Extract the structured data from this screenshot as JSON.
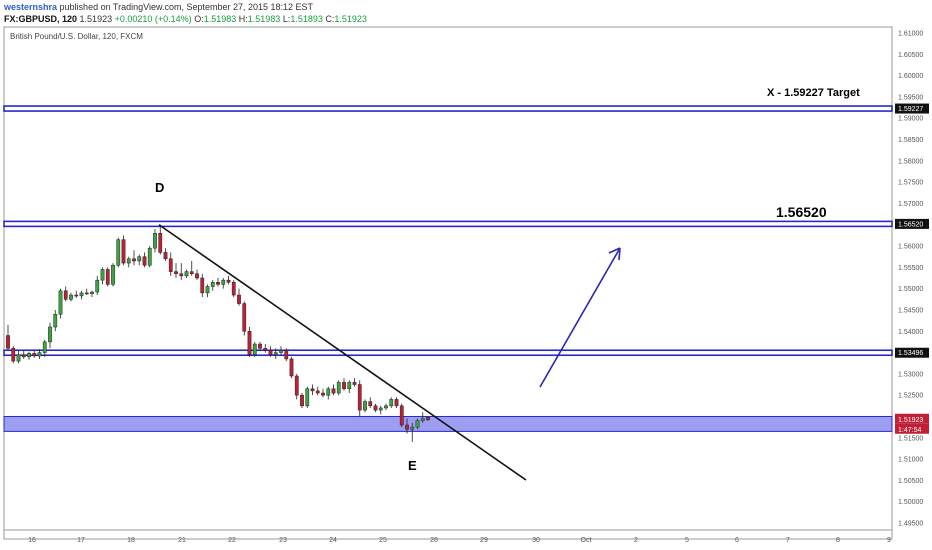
{
  "header": {
    "user": "westernshra",
    "published": "published on TradingView.com, September 27, 2015 18:12 EST",
    "symbol": "FX:GBPUSD, 120",
    "last": "1.51923",
    "change": "+0.00210 (+0.14%)",
    "o_label": "O:",
    "o_value": "1.51983",
    "h_label": "H:",
    "h_value": "1.51983",
    "l_label": "L:",
    "l_value": "1.51893",
    "c_label": "C:",
    "c_value": "1.51923"
  },
  "chart_data": {
    "type": "candlestick",
    "title": "British Pound/U.S. Dollar, 120, FXCM",
    "ylim": [
      1.49,
      1.611
    ],
    "y_ticks": [
      "1.61000",
      "1.60500",
      "1.60000",
      "1.59500",
      "1.59000",
      "1.58500",
      "1.58000",
      "1.57500",
      "1.57000",
      "1.56500",
      "1.56000",
      "1.55500",
      "1.55000",
      "1.54500",
      "1.54000",
      "1.53500",
      "1.53000",
      "1.52500",
      "1.52000",
      "1.51500",
      "1.51000",
      "1.50500",
      "1.50000",
      "1.49500"
    ],
    "x_ticks": [
      "16",
      "17",
      "18",
      "21",
      "22",
      "23",
      "24",
      "25",
      "28",
      "29",
      "30",
      "Oct",
      "2",
      "5",
      "6",
      "7",
      "8",
      "9"
    ],
    "candles": [
      [
        1.539,
        1.5415,
        1.5355,
        1.536
      ],
      [
        1.536,
        1.5365,
        1.5325,
        1.533
      ],
      [
        1.533,
        1.5355,
        1.5325,
        1.5345
      ],
      [
        1.5345,
        1.5355,
        1.5335,
        1.534
      ],
      [
        1.534,
        1.5352,
        1.5333,
        1.5348
      ],
      [
        1.5348,
        1.5355,
        1.5338,
        1.5342
      ],
      [
        1.5342,
        1.5358,
        1.5335,
        1.535
      ],
      [
        1.535,
        1.538,
        1.534,
        1.5375
      ],
      [
        1.5375,
        1.542,
        1.536,
        1.541
      ],
      [
        1.541,
        1.545,
        1.54,
        1.544
      ],
      [
        1.544,
        1.55,
        1.543,
        1.5495
      ],
      [
        1.5495,
        1.5505,
        1.547,
        1.5475
      ],
      [
        1.5475,
        1.549,
        1.547,
        1.5485
      ],
      [
        1.5485,
        1.5495,
        1.5478,
        1.5483
      ],
      [
        1.5483,
        1.5495,
        1.5475,
        1.549
      ],
      [
        1.549,
        1.55,
        1.5485,
        1.5488
      ],
      [
        1.5488,
        1.5495,
        1.548,
        1.5492
      ],
      [
        1.5492,
        1.553,
        1.5485,
        1.552
      ],
      [
        1.552,
        1.555,
        1.551,
        1.5545
      ],
      [
        1.5545,
        1.555,
        1.5505,
        1.551
      ],
      [
        1.551,
        1.556,
        1.5505,
        1.5555
      ],
      [
        1.5555,
        1.562,
        1.555,
        1.5615
      ],
      [
        1.5615,
        1.5625,
        1.5555,
        1.556
      ],
      [
        1.556,
        1.5575,
        1.555,
        1.557
      ],
      [
        1.557,
        1.559,
        1.5555,
        1.5565
      ],
      [
        1.5565,
        1.558,
        1.5555,
        1.5575
      ],
      [
        1.5575,
        1.5585,
        1.555,
        1.5555
      ],
      [
        1.5555,
        1.56,
        1.555,
        1.5595
      ],
      [
        1.5595,
        1.564,
        1.5585,
        1.563
      ],
      [
        1.563,
        1.565,
        1.558,
        1.5585
      ],
      [
        1.5585,
        1.5595,
        1.5565,
        1.557
      ],
      [
        1.557,
        1.5585,
        1.553,
        1.554
      ],
      [
        1.554,
        1.556,
        1.5525,
        1.5535
      ],
      [
        1.5535,
        1.556,
        1.552,
        1.553
      ],
      [
        1.553,
        1.5545,
        1.5525,
        1.554
      ],
      [
        1.554,
        1.5565,
        1.553,
        1.5535
      ],
      [
        1.5535,
        1.5545,
        1.552,
        1.5525
      ],
      [
        1.5525,
        1.5535,
        1.548,
        1.549
      ],
      [
        1.549,
        1.551,
        1.548,
        1.5505
      ],
      [
        1.5505,
        1.552,
        1.5495,
        1.5515
      ],
      [
        1.5515,
        1.5525,
        1.5505,
        1.551
      ],
      [
        1.551,
        1.5525,
        1.55,
        1.552
      ],
      [
        1.552,
        1.553,
        1.551,
        1.5515
      ],
      [
        1.5515,
        1.552,
        1.548,
        1.5485
      ],
      [
        1.5485,
        1.55,
        1.546,
        1.5465
      ],
      [
        1.5465,
        1.547,
        1.539,
        1.54
      ],
      [
        1.54,
        1.541,
        1.534,
        1.5345
      ],
      [
        1.5345,
        1.5375,
        1.534,
        1.537
      ],
      [
        1.537,
        1.5375,
        1.5355,
        1.536
      ],
      [
        1.536,
        1.537,
        1.535,
        1.5355
      ],
      [
        1.5355,
        1.5365,
        1.534,
        1.5345
      ],
      [
        1.5345,
        1.536,
        1.5335,
        1.535
      ],
      [
        1.535,
        1.5365,
        1.5345,
        1.5355
      ],
      [
        1.5355,
        1.536,
        1.533,
        1.5335
      ],
      [
        1.5335,
        1.534,
        1.529,
        1.5295
      ],
      [
        1.5295,
        1.53,
        1.524,
        1.525
      ],
      [
        1.525,
        1.5255,
        1.522,
        1.5225
      ],
      [
        1.5225,
        1.527,
        1.522,
        1.5265
      ],
      [
        1.5265,
        1.5275,
        1.525,
        1.526
      ],
      [
        1.526,
        1.527,
        1.525,
        1.5255
      ],
      [
        1.5255,
        1.5265,
        1.5245,
        1.525
      ],
      [
        1.525,
        1.527,
        1.524,
        1.5265
      ],
      [
        1.5265,
        1.5275,
        1.525,
        1.5255
      ],
      [
        1.5255,
        1.5285,
        1.525,
        1.528
      ],
      [
        1.528,
        1.529,
        1.526,
        1.5265
      ],
      [
        1.5265,
        1.5285,
        1.5255,
        1.528
      ],
      [
        1.528,
        1.529,
        1.527,
        1.5275
      ],
      [
        1.5275,
        1.5285,
        1.52,
        1.5215
      ],
      [
        1.5215,
        1.524,
        1.521,
        1.5235
      ],
      [
        1.5235,
        1.5245,
        1.522,
        1.5225
      ],
      [
        1.5225,
        1.523,
        1.521,
        1.5215
      ],
      [
        1.5215,
        1.5225,
        1.5205,
        1.522
      ],
      [
        1.522,
        1.523,
        1.5215,
        1.5225
      ],
      [
        1.5225,
        1.5245,
        1.522,
        1.524
      ],
      [
        1.524,
        1.5245,
        1.522,
        1.5225
      ],
      [
        1.5225,
        1.523,
        1.5175,
        1.518
      ],
      [
        1.518,
        1.5195,
        1.516,
        1.517
      ],
      [
        1.517,
        1.5185,
        1.514,
        1.5175
      ],
      [
        1.5175,
        1.5195,
        1.517,
        1.519
      ],
      [
        1.519,
        1.521,
        1.5185,
        1.5195
      ],
      [
        1.5198,
        1.5198,
        1.5189,
        1.51923
      ]
    ],
    "levels": [
      {
        "value": 1.59227,
        "label": "1.59227"
      },
      {
        "value": 1.5652,
        "label": "1.56520"
      },
      {
        "value": 1.53496,
        "label": "1.53496"
      }
    ],
    "zone": [
      1.5165,
      1.52
    ],
    "price_tag": "1.51923",
    "time_tag": "1:47:54",
    "annotations": [
      {
        "name": "annotation-x-target",
        "text": "X  -  1.59227 Target"
      },
      {
        "name": "annotation-level-156520",
        "text": "1.56520"
      },
      {
        "name": "annotation-d",
        "text": "D"
      },
      {
        "name": "annotation-e",
        "text": "E"
      }
    ],
    "trendline": [
      [
        1.565,
        0
      ],
      [
        1.505,
        0
      ]
    ],
    "colors": {
      "up": "#3ba640",
      "down": "#c11f36",
      "level": "#2828c8",
      "zone": "#8c8cf0",
      "arrow": "#2828b4",
      "trend": "#111111",
      "tag": "#c11f36"
    }
  }
}
